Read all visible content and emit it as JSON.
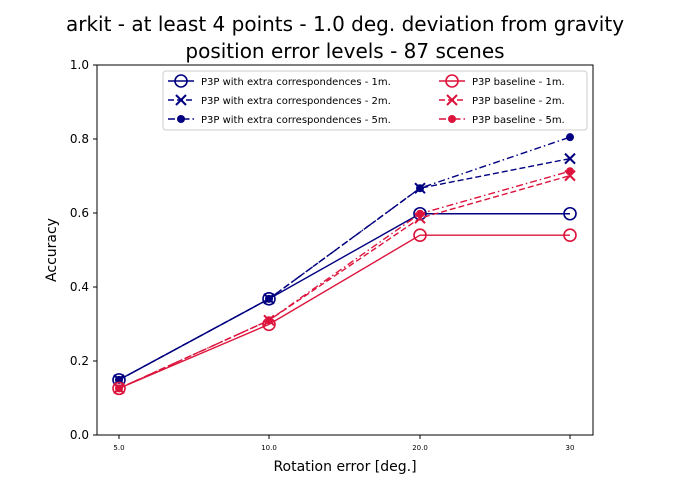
{
  "chart_data": {
    "type": "line",
    "title_line1": "arkit - at least 4 points - 1.0 deg. deviation from gravity",
    "title_line2": "position error levels - 87 scenes",
    "xlabel": "Rotation error [deg.]",
    "ylabel": "Accuracy",
    "categories": [
      "5.0",
      "10.0",
      "20.0",
      "30"
    ],
    "ylim": [
      0,
      1
    ],
    "yticks": [
      "0.0",
      "0.2",
      "0.4",
      "0.6",
      "0.8",
      "1.0"
    ],
    "ytick_values": [
      0,
      0.2,
      0.4,
      0.6,
      0.8,
      1.0
    ],
    "grid": false,
    "legend_position": "top-right",
    "series": [
      {
        "name": "P3P with extra correspondences - 1m.",
        "color": "#000080",
        "dash": "solid",
        "marker": "circle-open",
        "values": [
          0.149,
          0.368,
          0.598,
          0.598
        ]
      },
      {
        "name": "P3P with extra correspondences - 2m.",
        "color": "#000080",
        "dash": "dashed",
        "marker": "x",
        "values": [
          0.149,
          0.368,
          0.667,
          0.747
        ]
      },
      {
        "name": "P3P with extra correspondences - 5m.",
        "color": "#000080",
        "dash": "dashdot",
        "marker": "dot",
        "values": [
          0.149,
          0.368,
          0.667,
          0.805
        ]
      },
      {
        "name": "P3P baseline - 1m.",
        "color": "#dc143c",
        "dash": "solid",
        "marker": "circle-open",
        "values": [
          0.126,
          0.299,
          0.54,
          0.54
        ]
      },
      {
        "name": "P3P baseline - 2m.",
        "color": "#dc143c",
        "dash": "dashed",
        "marker": "x",
        "values": [
          0.126,
          0.31,
          0.586,
          0.701
        ]
      },
      {
        "name": "P3P baseline - 5m.",
        "color": "#dc143c",
        "dash": "dashdot",
        "marker": "dot",
        "values": [
          0.126,
          0.31,
          0.598,
          0.713
        ]
      }
    ]
  }
}
